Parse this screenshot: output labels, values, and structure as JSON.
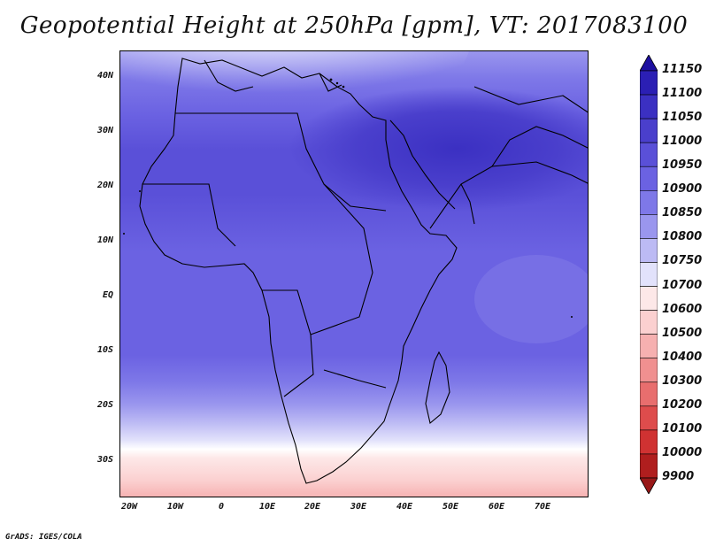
{
  "title": "Geopotential Height at 250hPa [gpm], VT: 2017083100",
  "footer": "GrADS: IGES/COLA",
  "map": {
    "lat_ticks": [
      "40N",
      "30N",
      "20N",
      "10N",
      "EQ",
      "10S",
      "20S",
      "30S"
    ],
    "lon_ticks": [
      "20W",
      "10W",
      "0",
      "10E",
      "20E",
      "30E",
      "40E",
      "50E",
      "60E",
      "70E"
    ],
    "lon_range": [
      -23,
      80
    ],
    "lat_range": [
      -37,
      45
    ]
  },
  "colorbar": {
    "levels": [
      "11150",
      "11100",
      "11050",
      "11000",
      "10950",
      "10900",
      "10850",
      "10800",
      "10750",
      "10700",
      "10600",
      "10500",
      "10400",
      "10300",
      "10200",
      "10100",
      "10000",
      "9900"
    ],
    "colors": [
      "#1e10a0",
      "#2b1fb4",
      "#3b30c2",
      "#4a3fcc",
      "#5a50d8",
      "#6b62e2",
      "#7e78e8",
      "#9a96ee",
      "#bcbaf4",
      "#e2e2fb",
      "#fde8e8",
      "#fbd0d0",
      "#f6b0b0",
      "#f09090",
      "#e86e6e",
      "#de4c4c",
      "#d03232",
      "#b01e1e",
      "#981818"
    ]
  }
}
